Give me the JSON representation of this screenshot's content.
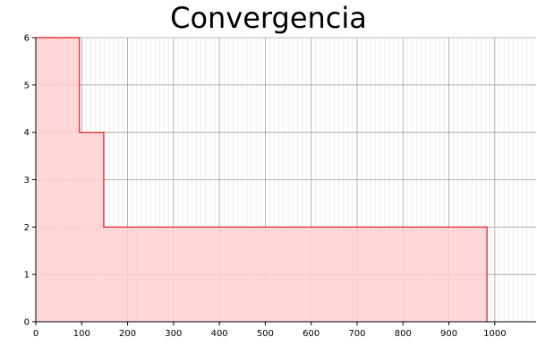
{
  "chart_data": {
    "type": "area",
    "step": true,
    "title": "Convergencia",
    "xlabel": "",
    "ylabel": "",
    "xlim": [
      0,
      1090
    ],
    "ylim": [
      0,
      6
    ],
    "x_ticks": [
      0,
      100,
      200,
      300,
      400,
      500,
      600,
      700,
      800,
      900,
      1000
    ],
    "y_ticks": [
      0,
      1,
      2,
      3,
      4,
      5,
      6
    ],
    "grid": true,
    "legend": "none",
    "series": [
      {
        "points": [
          [
            0,
            6
          ],
          [
            95,
            6
          ],
          [
            95,
            4
          ],
          [
            148,
            4
          ],
          [
            148,
            2
          ],
          [
            983,
            2
          ],
          [
            983,
            0
          ]
        ],
        "line_color": "#e8191c",
        "fill_color": "#ffd0d2"
      }
    ]
  }
}
